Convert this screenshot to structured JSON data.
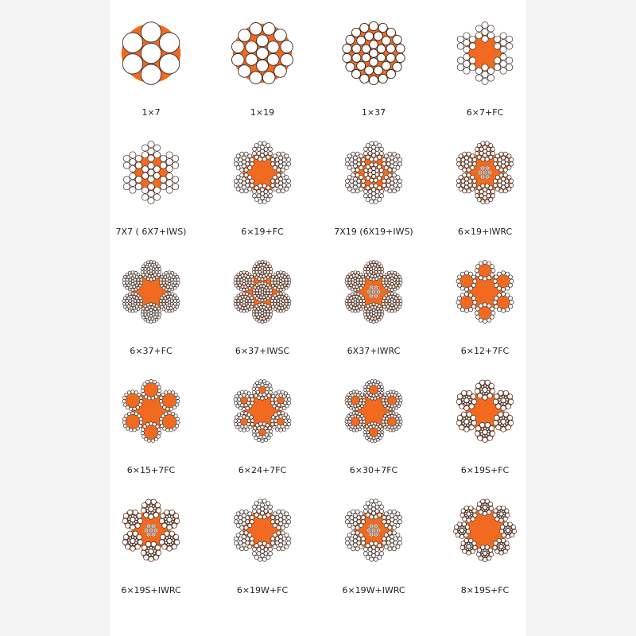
{
  "colors": {
    "core": "#f26a1f",
    "wire_fill": "#ffffff",
    "wire_stroke": "#3a2b25",
    "panel": "#ffffff"
  },
  "items": [
    {
      "label": "1×7",
      "strands": 1,
      "rings": [
        6
      ],
      "fiber_core": false,
      "core": "none"
    },
    {
      "label": "1×19",
      "strands": 1,
      "rings": [
        6,
        12
      ],
      "fiber_core": false,
      "core": "none"
    },
    {
      "label": "1×37",
      "strands": 1,
      "rings": [
        6,
        12,
        18
      ],
      "fiber_core": false,
      "core": "none"
    },
    {
      "label": "6×7+FC",
      "strands": 6,
      "rings": [
        6
      ],
      "fiber_core": false,
      "core": "FC"
    },
    {
      "label": "7X7 ( 6X7+IWS)",
      "strands": 6,
      "rings": [
        6
      ],
      "fiber_core": false,
      "core": "IWS"
    },
    {
      "label": "6×19+FC",
      "strands": 6,
      "rings": [
        6,
        12
      ],
      "fiber_core": false,
      "core": "FC"
    },
    {
      "label": "7X19 (6X19+IWS)",
      "strands": 6,
      "rings": [
        6,
        12
      ],
      "fiber_core": false,
      "core": "IWS"
    },
    {
      "label": "6×19+IWRC",
      "strands": 6,
      "rings": [
        6,
        12
      ],
      "fiber_core": false,
      "core": "IWRC",
      "strand_gaps": true
    },
    {
      "label": "6×37+FC",
      "strands": 6,
      "rings": [
        6,
        12,
        18
      ],
      "fiber_core": false,
      "core": "FC"
    },
    {
      "label": "6×37+IWSC",
      "strands": 6,
      "rings": [
        6,
        12,
        18
      ],
      "fiber_core": false,
      "core": "IWS",
      "strand_gaps": true
    },
    {
      "label": "6X37+IWRC",
      "strands": 6,
      "rings": [
        6,
        12,
        18
      ],
      "fiber_core": false,
      "core": "IWRC",
      "strand_gaps": true
    },
    {
      "label": "6×12+7FC",
      "strands": 6,
      "rings": [
        12
      ],
      "fiber_core": true,
      "core": "FC"
    },
    {
      "label": "6×15+7FC",
      "strands": 6,
      "rings": [
        15
      ],
      "fiber_core": true,
      "core": "FC"
    },
    {
      "label": "6×24+7FC",
      "strands": 6,
      "rings": [
        9,
        15
      ],
      "fiber_core": true,
      "core": "FC"
    },
    {
      "label": "6×30+7FC",
      "strands": 6,
      "rings": [
        12,
        18
      ],
      "fiber_core": true,
      "core": "FC"
    },
    {
      "label": "6×19S+FC",
      "strands": 6,
      "rings": [
        9,
        9
      ],
      "fiber_core": false,
      "core": "FC",
      "strand_gaps": true
    },
    {
      "label": "6×19S+IWRC",
      "strands": 6,
      "rings": [
        9,
        9
      ],
      "fiber_core": false,
      "core": "IWRC",
      "strand_gaps": true
    },
    {
      "label": "6×19W+FC",
      "strands": 6,
      "rings": [
        6,
        12
      ],
      "fiber_core": false,
      "core": "FC"
    },
    {
      "label": "6×19W+IWRC",
      "strands": 6,
      "rings": [
        6,
        12
      ],
      "fiber_core": false,
      "core": "IWRC"
    },
    {
      "label": "8×19S+FC",
      "strands": 8,
      "rings": [
        9,
        9
      ],
      "fiber_core": false,
      "core": "FC",
      "strand_gaps": true
    }
  ]
}
